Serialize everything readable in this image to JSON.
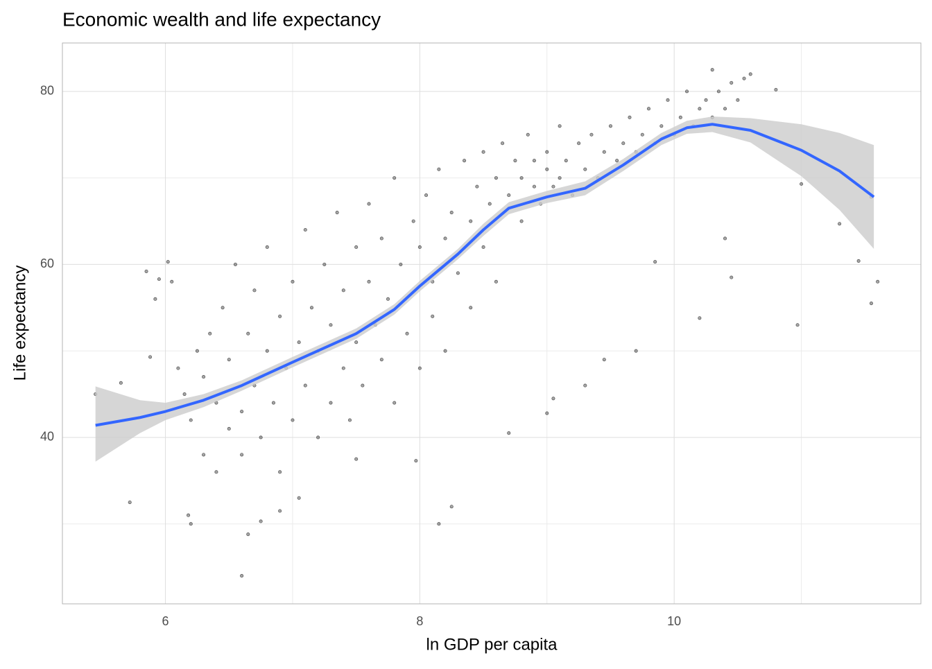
{
  "chart_data": {
    "type": "scatter",
    "title": "Economic wealth and life expectancy",
    "x_label": "ln GDP per capita",
    "y_label": "Life expectancy",
    "xlim": [
      5.19,
      11.94
    ],
    "ylim": [
      20.76,
      85.6
    ],
    "xticks": [
      6,
      8,
      10
    ],
    "yticks": [
      40,
      60,
      80
    ],
    "x_minor": [
      7,
      9,
      11
    ],
    "y_minor": [
      30,
      50,
      70
    ],
    "grid": true,
    "points": {
      "color": "#000000",
      "x": [
        5.45,
        5.65,
        5.72,
        5.85,
        5.88,
        5.92,
        5.95,
        6.02,
        6.05,
        6.18,
        6.2,
        6.6,
        6.65,
        10.97,
        11.0,
        11.3,
        11.45,
        11.55,
        11.6,
        11.55,
        10.8,
        10.6,
        10.3,
        8.15,
        8.25,
        7.5,
        7.97,
        8.7,
        9.0,
        9.05,
        9.3,
        9.45,
        9.7,
        10.2,
        9.85,
        10.4,
        10.45,
        6.9,
        7.05,
        6.75,
        6.1,
        6.15,
        6.2,
        6.25,
        6.3,
        6.3,
        6.35,
        6.4,
        6.4,
        6.45,
        6.5,
        6.5,
        6.55,
        6.6,
        6.6,
        6.65,
        6.7,
        6.7,
        6.75,
        6.8,
        6.8,
        6.85,
        6.9,
        6.9,
        6.95,
        7.0,
        7.0,
        7.05,
        7.1,
        7.1,
        7.15,
        7.2,
        7.2,
        7.25,
        7.3,
        7.3,
        7.35,
        7.4,
        7.4,
        7.45,
        7.5,
        7.5,
        7.55,
        7.6,
        7.6,
        7.65,
        7.7,
        7.7,
        7.75,
        7.8,
        7.8,
        7.85,
        7.9,
        7.95,
        8.0,
        8.0,
        8.05,
        8.1,
        8.1,
        8.15,
        8.2,
        8.2,
        8.25,
        8.3,
        8.35,
        8.4,
        8.4,
        8.45,
        8.5,
        8.5,
        8.55,
        8.6,
        8.6,
        8.65,
        8.7,
        8.75,
        8.8,
        8.8,
        8.85,
        8.9,
        8.9,
        8.95,
        9.0,
        9.0,
        9.05,
        9.1,
        9.1,
        9.15,
        9.2,
        9.25,
        9.3,
        9.35,
        9.4,
        9.45,
        9.5,
        9.55,
        9.6,
        9.65,
        9.7,
        9.75,
        9.8,
        9.85,
        9.9,
        9.95,
        10.0,
        10.05,
        10.1,
        10.15,
        10.2,
        10.25,
        10.3,
        10.35,
        10.4,
        10.45,
        10.5,
        10.55
      ],
      "y": [
        45,
        46.3,
        32.5,
        59.2,
        49.3,
        56,
        58.3,
        60.3,
        58,
        31,
        30,
        24,
        28.8,
        53,
        69.3,
        64.7,
        60.4,
        55.5,
        58,
        67.8,
        80.2,
        82,
        82.5,
        30,
        32,
        37.5,
        37.3,
        40.5,
        42.8,
        44.5,
        46,
        49,
        50,
        53.8,
        60.3,
        63,
        58.5,
        31.5,
        33,
        30.3,
        48,
        45,
        42,
        50,
        47,
        38,
        52,
        44,
        36,
        55,
        41,
        49,
        60,
        43,
        38,
        52,
        46,
        57,
        40,
        50,
        62,
        44,
        54,
        36,
        48,
        58,
        42,
        51,
        64,
        46,
        55,
        40,
        50,
        60,
        53,
        44,
        66,
        48,
        57,
        42,
        62,
        51,
        46,
        58,
        67,
        53,
        49,
        63,
        56,
        44,
        70,
        60,
        52,
        65,
        62,
        48,
        68,
        58,
        54,
        71,
        63,
        50,
        66,
        59,
        72,
        65,
        55,
        69,
        62,
        73,
        67,
        70,
        58,
        74,
        68,
        72,
        65,
        70,
        75,
        69,
        72,
        67,
        71,
        73,
        69,
        76,
        70,
        72,
        68,
        74,
        71,
        75,
        70,
        73,
        76,
        72,
        74,
        77,
        73,
        75,
        78,
        74,
        76,
        79,
        75,
        77,
        80,
        76,
        78,
        79,
        77,
        80,
        78,
        81,
        79,
        81.5
      ]
    },
    "smooth": {
      "color": "#3366ff",
      "band_color": "#cccccc",
      "x": [
        5.45,
        5.8,
        6.0,
        6.3,
        6.6,
        7.0,
        7.5,
        7.8,
        8.0,
        8.3,
        8.5,
        8.7,
        9.0,
        9.3,
        9.6,
        9.9,
        10.1,
        10.3,
        10.6,
        11.0,
        11.3,
        11.57
      ],
      "y": [
        41.4,
        42.3,
        43,
        44.3,
        46,
        48.7,
        52,
        54.8,
        57.5,
        61.2,
        64,
        66.5,
        67.8,
        68.8,
        71.5,
        74.5,
        75.8,
        76.2,
        75.5,
        73.2,
        70.8,
        67.8
      ],
      "lower": [
        37.2,
        40.5,
        42,
        43.5,
        45.4,
        48.1,
        51.4,
        54.2,
        56.9,
        60.6,
        63.3,
        65.8,
        67.1,
        68,
        70.8,
        73.8,
        75.1,
        75.3,
        74.1,
        70.2,
        66.3,
        61.8
      ],
      "upper": [
        45.9,
        44.3,
        44,
        45,
        46.6,
        49.3,
        52.6,
        55.4,
        58.1,
        61.8,
        64.7,
        67.2,
        68.5,
        69.6,
        72.2,
        75.2,
        76.6,
        77.1,
        76.9,
        76.2,
        75.2,
        73.8
      ]
    }
  }
}
